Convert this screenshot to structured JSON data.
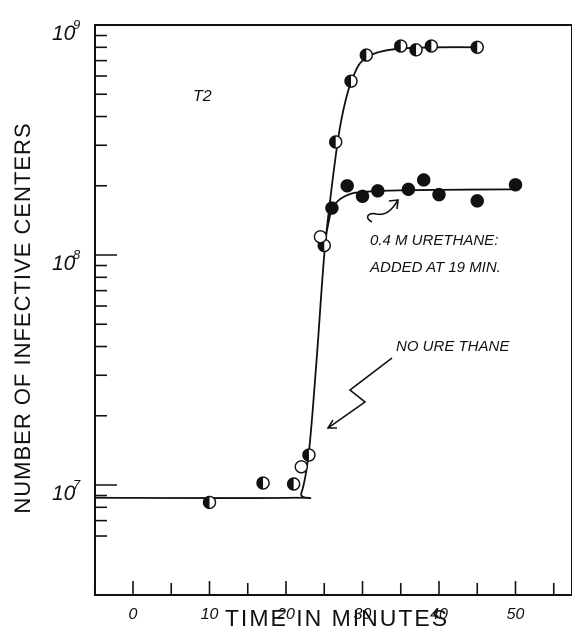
{
  "chart_data": {
    "type": "scatter",
    "xlabel": "TIME IN MINUTES",
    "ylabel": "NUMBER OF INFECTIVE CENTERS",
    "xlim": [
      -5,
      58
    ],
    "ylim": [
      6000000,
      1000000000
    ],
    "y_scale": "log",
    "x_ticks": [
      0,
      10,
      20,
      30,
      40,
      50
    ],
    "y_tick_labels": [
      {
        "label": "10^9",
        "mantissa": "10",
        "exponent": "9",
        "value": 1000000000
      },
      {
        "label": "10^8",
        "mantissa": "10",
        "exponent": "8",
        "value": 100000000
      },
      {
        "label": "10^7",
        "mantissa": "10",
        "exponent": "7",
        "value": 10000000
      }
    ],
    "grid": false,
    "panel_label": "T2",
    "annotations": [
      {
        "lines": [
          "0.4 M URETHANE:",
          "ADDED AT 19 MIN."
        ],
        "points_to": "urethane curve"
      },
      {
        "lines": [
          "NO URE THANE"
        ],
        "points_to": "control curve"
      }
    ],
    "series": [
      {
        "marker": "half-filled circle",
        "points": [
          [
            10,
            8400000
          ],
          [
            17,
            10200000
          ],
          [
            21,
            10100000
          ],
          [
            23,
            13500000
          ],
          [
            25,
            110000000
          ],
          [
            26.5,
            310000000
          ],
          [
            28.5,
            570000000
          ],
          [
            30.5,
            740000000
          ],
          [
            35,
            810000000
          ],
          [
            37,
            780000000
          ],
          [
            39,
            810000000
          ],
          [
            45,
            800000000
          ]
        ]
      },
      {
        "marker": "open circle",
        "points": [
          [
            22,
            12000000
          ],
          [
            24.5,
            120000000
          ]
        ]
      },
      {
        "marker": "filled circle",
        "points": [
          [
            26,
            160000000
          ],
          [
            28,
            200000000
          ],
          [
            30,
            180000000
          ],
          [
            32,
            190000000
          ],
          [
            36,
            193000000
          ],
          [
            38,
            212000000
          ],
          [
            40,
            183000000
          ],
          [
            45,
            172000000
          ],
          [
            50,
            202000000
          ]
        ]
      }
    ],
    "curves": [
      {
        "describes": "no urethane",
        "points": [
          [
            -5,
            8800000
          ],
          [
            21,
            8800000
          ],
          [
            22,
            9200000
          ],
          [
            23,
            14000000
          ],
          [
            24,
            35000000
          ],
          [
            25,
            100000000
          ],
          [
            26,
            200000000
          ],
          [
            27,
            350000000
          ],
          [
            28,
            500000000
          ],
          [
            29,
            620000000
          ],
          [
            30,
            700000000
          ],
          [
            32,
            760000000
          ],
          [
            35,
            790000000
          ],
          [
            40,
            800000000
          ],
          [
            45,
            800000000
          ]
        ]
      },
      {
        "describes": "0.4 M urethane added at 19 min",
        "points": [
          [
            25.2,
            120000000
          ],
          [
            25.8,
            150000000
          ],
          [
            26.5,
            168000000
          ],
          [
            28,
            182000000
          ],
          [
            30,
            188000000
          ],
          [
            35,
            191000000
          ],
          [
            40,
            192000000
          ],
          [
            50,
            193000000
          ]
        ]
      }
    ]
  }
}
